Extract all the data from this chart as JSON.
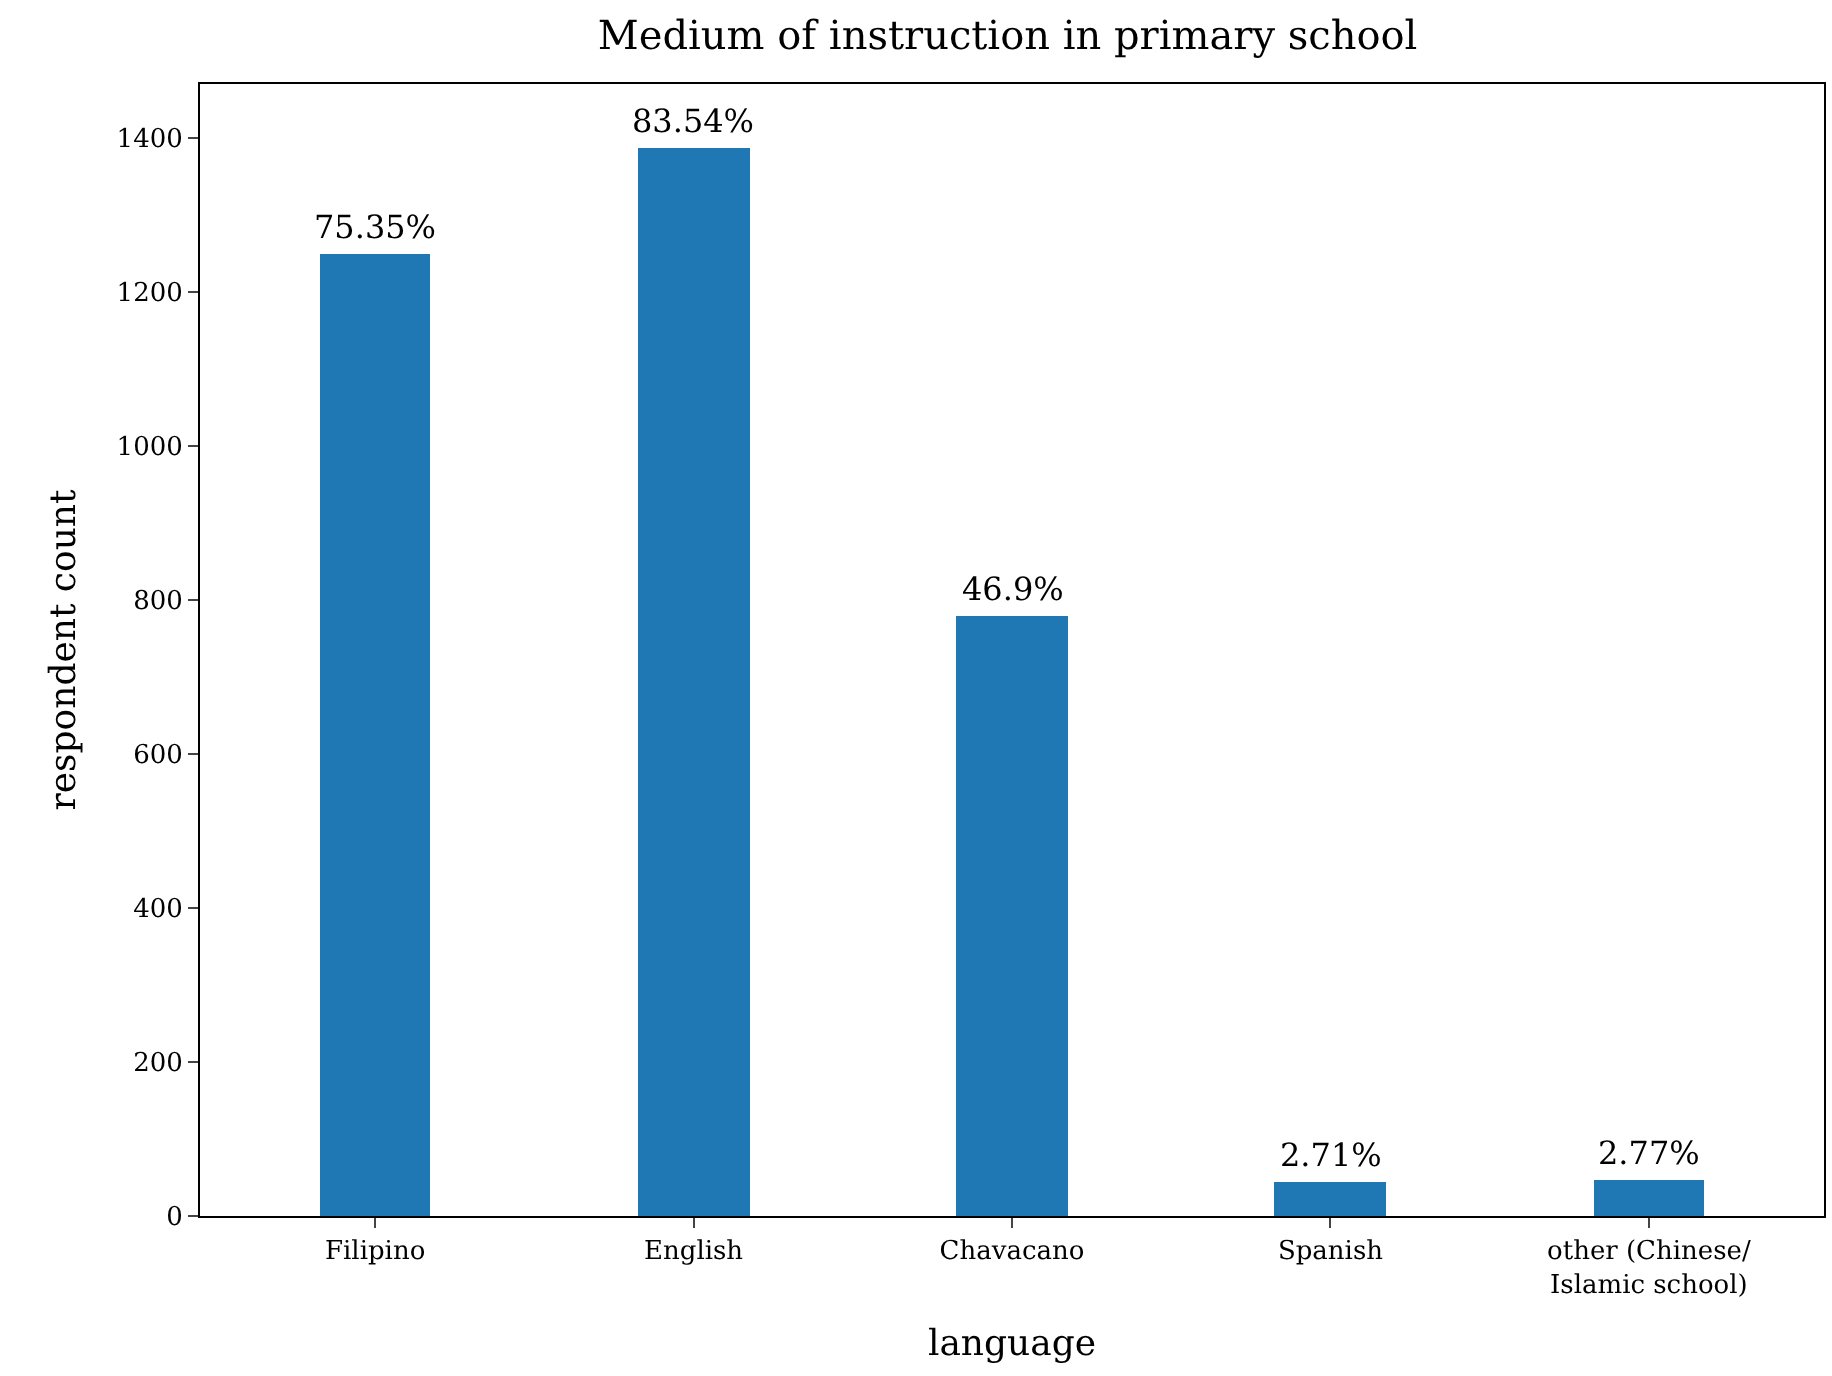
{
  "chart_data": {
    "type": "bar",
    "title": "Medium of instruction in primary school",
    "xlabel": "language",
    "ylabel": "respondent count",
    "categories": [
      "Filipino",
      "English",
      "Chavacano",
      "Spanish",
      "other (Chinese/\nIslamic school)"
    ],
    "values": [
      1250,
      1386,
      778,
      45,
      46
    ],
    "annotations": [
      {
        "text": "75.35%",
        "x": "Filipino",
        "y": 1250
      },
      {
        "text": "83.54%",
        "x": "English",
        "y": 1386
      },
      {
        "text": "46.9%",
        "x": "Chavacano",
        "y": 778
      },
      {
        "text": "2.71%",
        "x": "Spanish",
        "y": 45
      },
      {
        "text": "2.77%",
        "x": "other (Chinese/\nIslamic school)",
        "y": 46
      }
    ],
    "color": "#1f77b4",
    "ylim": [
      0,
      1470
    ],
    "yticks": [
      0,
      200,
      400,
      600,
      800,
      1000,
      1200,
      1400
    ]
  }
}
